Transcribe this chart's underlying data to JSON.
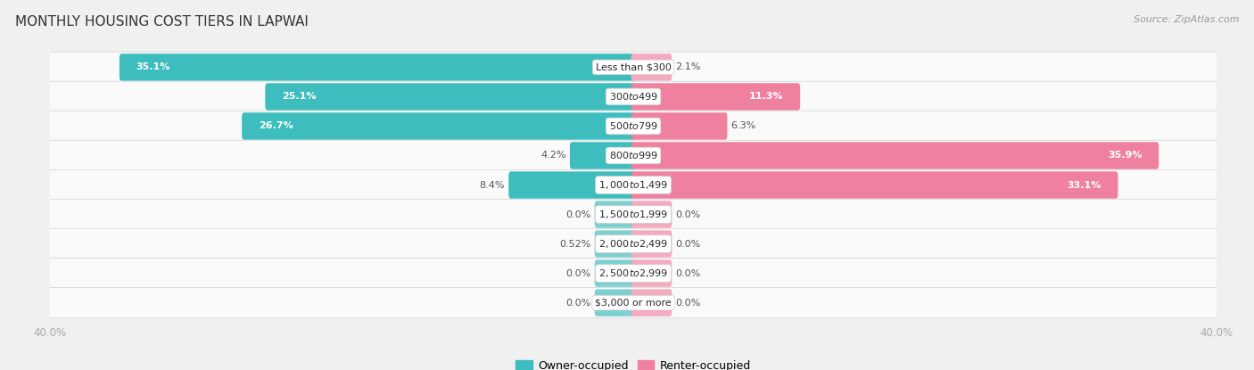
{
  "title": "MONTHLY HOUSING COST TIERS IN LAPWAI",
  "source": "Source: ZipAtlas.com",
  "categories": [
    "Less than $300",
    "$300 to $499",
    "$500 to $799",
    "$800 to $999",
    "$1,000 to $1,499",
    "$1,500 to $1,999",
    "$2,000 to $2,499",
    "$2,500 to $2,999",
    "$3,000 or more"
  ],
  "owner_values": [
    35.1,
    25.1,
    26.7,
    4.2,
    8.4,
    0.0,
    0.52,
    0.0,
    0.0
  ],
  "renter_values": [
    2.1,
    11.3,
    6.3,
    35.9,
    33.1,
    0.0,
    0.0,
    0.0,
    0.0
  ],
  "owner_color": "#3dbdbd",
  "renter_color": "#f080a0",
  "owner_color_small": "#7dd0d0",
  "renter_color_small": "#f5aac0",
  "bg_color": "#f0f0f0",
  "row_bg_color": "#fafafa",
  "row_border_color": "#d8d8d8",
  "axis_label_color": "#aaaaaa",
  "xlim": 40.0,
  "legend_labels": [
    "Owner-occupied",
    "Renter-occupied"
  ],
  "title_fontsize": 11,
  "source_fontsize": 8,
  "bar_label_fontsize": 8,
  "category_fontsize": 8,
  "axis_tick_fontsize": 8.5,
  "legend_fontsize": 9,
  "bar_height": 0.62,
  "min_bar_display": 1.5,
  "small_bar_width": 2.5
}
